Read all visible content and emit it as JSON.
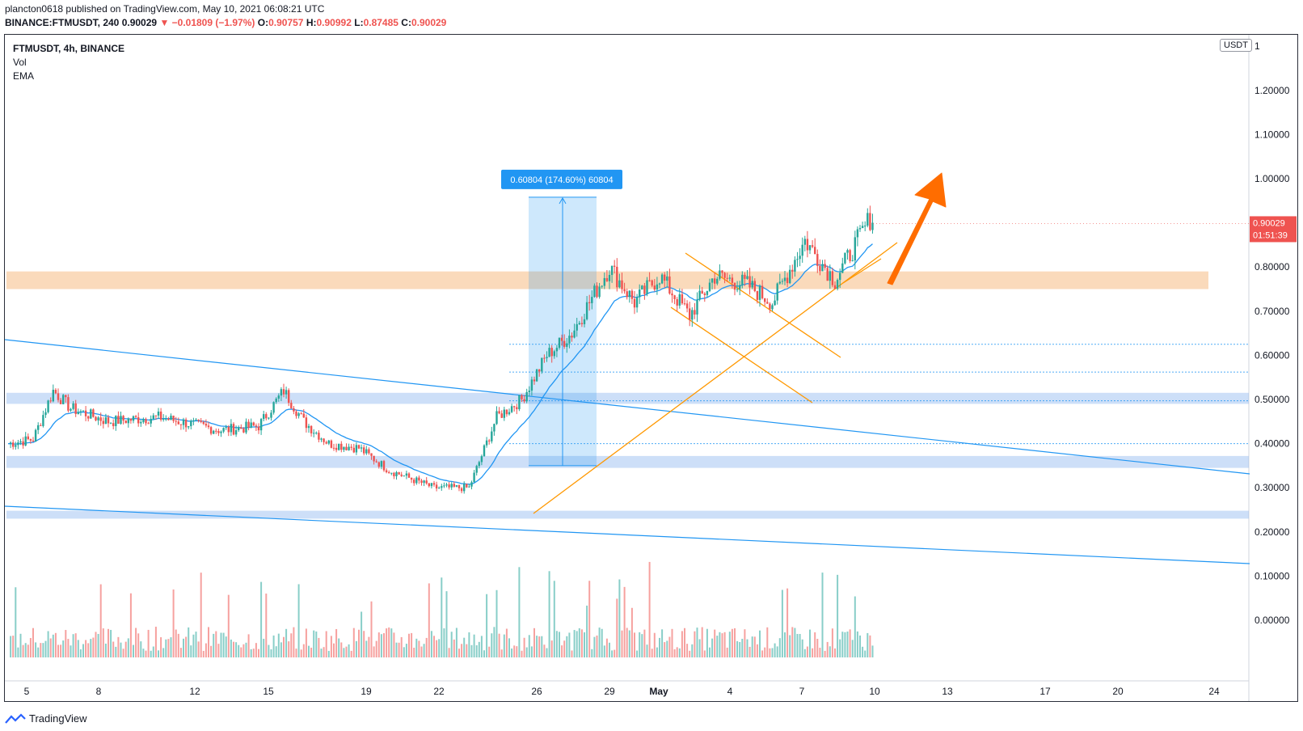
{
  "header": {
    "publisher_line": "plancton0618 published on TradingView.com, May 10, 2021 06:08:21 UTC",
    "symbol_line": "BINANCE:FTMUSDT, 240",
    "last": "0.90029",
    "change": "▼ −0.01809 (−1.97%)",
    "o_label": "O:",
    "o": "0.90757",
    "h_label": "H:",
    "h": "0.90992",
    "l_label": "L:",
    "l": "0.87485",
    "c_label": "C:",
    "c": "0.90029"
  },
  "legend": {
    "symbol": "FTMUSDT, 4h, BINANCE",
    "vol": "Vol",
    "ema": "EMA"
  },
  "price_scale": {
    "unit": "USDT",
    "top_label": "1"
  },
  "price_badge": {
    "price": "0.90029",
    "countdown": "01:51:39"
  },
  "measure_label": "0.60804 (174.60%) 60804",
  "brand": "TradingView",
  "colors": {
    "up": "#26a69a",
    "down": "#ef5350",
    "ema": "#2196f3",
    "trend": "#2196f3",
    "pattern": "#ff9800",
    "arrow": "#ff6d00",
    "zone": "#f7c18d"
  },
  "chart_data": {
    "type": "candlestick",
    "title": "FTMUSDT, 4h, BINANCE",
    "ylabel": "USDT",
    "ylim": [
      -0.08,
      1.3
    ],
    "y_ticks": [
      0.0,
      0.1,
      0.2,
      0.3,
      0.4,
      0.5,
      0.6,
      0.7,
      0.8,
      0.9,
      1.0,
      1.1,
      1.2
    ],
    "y_tick_labels": [
      "0.00000",
      "0.10000",
      "0.20000",
      "0.30000",
      "0.40000",
      "0.50000",
      "0.60000",
      "0.70000",
      "0.80000",
      "0.90000",
      "1.00000",
      "1.10000",
      "1.20000"
    ],
    "x_tick_labels": [
      "5",
      "8",
      "12",
      "15",
      "19",
      "22",
      "26",
      "29",
      "May",
      "4",
      "7",
      "10",
      "13",
      "17",
      "20",
      "24"
    ],
    "series_close_anchor_points": [
      [
        0,
        0.4
      ],
      [
        10,
        0.41
      ],
      [
        18,
        0.52
      ],
      [
        25,
        0.48
      ],
      [
        40,
        0.45
      ],
      [
        60,
        0.46
      ],
      [
        85,
        0.43
      ],
      [
        100,
        0.44
      ],
      [
        110,
        0.52
      ],
      [
        118,
        0.45
      ],
      [
        128,
        0.4
      ],
      [
        140,
        0.39
      ],
      [
        152,
        0.34
      ],
      [
        170,
        0.3
      ],
      [
        184,
        0.3
      ],
      [
        195,
        0.46
      ],
      [
        205,
        0.5
      ],
      [
        215,
        0.6
      ],
      [
        225,
        0.65
      ],
      [
        240,
        0.8
      ],
      [
        250,
        0.72
      ],
      [
        260,
        0.78
      ],
      [
        272,
        0.69
      ],
      [
        282,
        0.78
      ],
      [
        295,
        0.76
      ],
      [
        305,
        0.72
      ],
      [
        318,
        0.86
      ],
      [
        330,
        0.77
      ],
      [
        345,
        0.92
      ]
    ],
    "last_close": 0.90029,
    "measure": {
      "from": 0.35,
      "to": 0.958,
      "delta": 0.60804,
      "percent": 174.6
    },
    "resistance_zone": [
      0.75,
      0.79
    ],
    "support_zones": [
      [
        0.49,
        0.515
      ],
      [
        0.345,
        0.372
      ],
      [
        0.23,
        0.248
      ]
    ]
  }
}
